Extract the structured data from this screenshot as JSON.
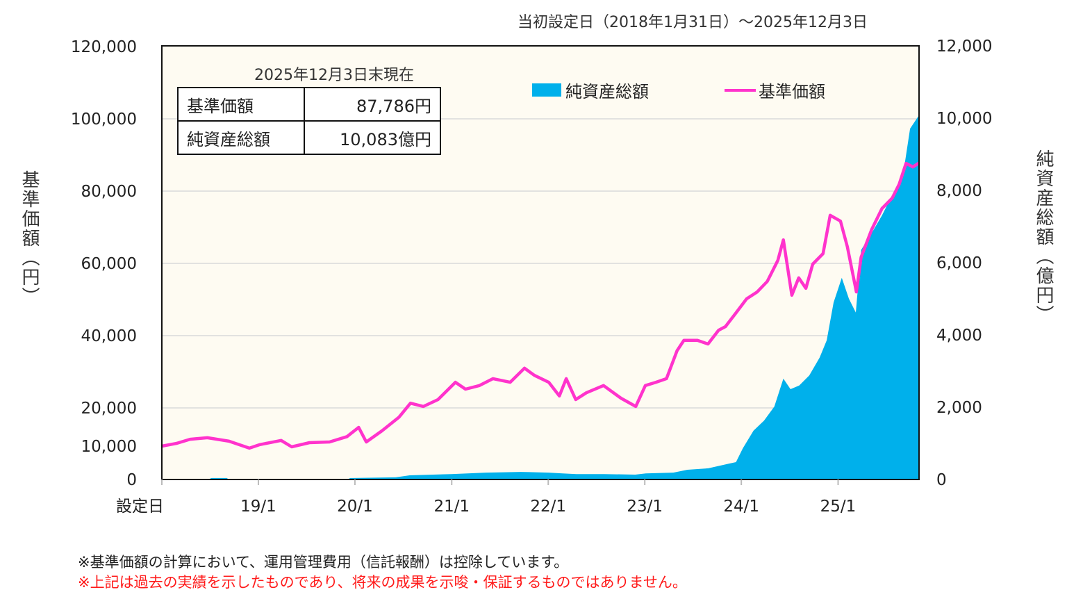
{
  "period": "当初設定日（2018年1月31日）～2025年12月3日",
  "info_box": {
    "as_of": "2025年12月3日末現在",
    "rows": [
      {
        "label": "基準価額",
        "value": "87,786円"
      },
      {
        "label": "純資産総額",
        "value": "10,083億円"
      }
    ]
  },
  "notes": [
    "※基準価額の計算において、運用管理費用（信託報酬）は控除しています。",
    "※上記は過去の実績を示したものであり、将来の成果を示唆・保証するものではありません。"
  ],
  "colors": {
    "nav": "#ff33cc",
    "net_assets": "#00b0eb",
    "plot_bg": "#fefbf2",
    "grid": "#d9d9d9",
    "note_warning": "#ff1a1a"
  },
  "chart_data": {
    "type": "line+area",
    "legend_position": "top-right",
    "grid": true,
    "xlabel": "",
    "x_range": [
      "2018-01-31",
      "2025-12-03"
    ],
    "x_ticks": [
      {
        "label": "設定日",
        "date": "2018-01-31"
      },
      {
        "label": "19/1",
        "date": "2019-01-31"
      },
      {
        "label": "20/1",
        "date": "2020-01-31"
      },
      {
        "label": "21/1",
        "date": "2021-01-31"
      },
      {
        "label": "22/1",
        "date": "2022-01-31"
      },
      {
        "label": "23/1",
        "date": "2023-01-31"
      },
      {
        "label": "24/1",
        "date": "2024-01-31"
      },
      {
        "label": "25/1",
        "date": "2025-01-31"
      }
    ],
    "y_left": {
      "label": "基準価額（円）",
      "ylim": [
        0,
        120000
      ],
      "ticks": [
        {
          "v": 0,
          "label": "0"
        },
        {
          "v": 10000,
          "label": "10,000"
        },
        {
          "v": 20000,
          "label": "20,000"
        },
        {
          "v": 40000,
          "label": "40,000"
        },
        {
          "v": 60000,
          "label": "60,000"
        },
        {
          "v": 80000,
          "label": "80,000"
        },
        {
          "v": 100000,
          "label": "100,000"
        },
        {
          "v": 120000,
          "label": "120,000"
        }
      ]
    },
    "y_right": {
      "label": "純資産総額（億円）",
      "ylim": [
        0,
        12000
      ],
      "ticks": [
        {
          "v": 0,
          "label": "0"
        },
        {
          "v": 2000,
          "label": "2,000"
        },
        {
          "v": 4000,
          "label": "4,000"
        },
        {
          "v": 6000,
          "label": "6,000"
        },
        {
          "v": 8000,
          "label": "8,000"
        },
        {
          "v": 10000,
          "label": "10,000"
        },
        {
          "v": 12000,
          "label": "12,000"
        }
      ]
    },
    "series": [
      {
        "name": "純資産総額",
        "type": "area",
        "axis": "right",
        "unit": "億円",
        "points": [
          [
            "2018-01-31",
            0
          ],
          [
            "2018-07-24",
            0
          ],
          [
            "2018-08-07",
            40
          ],
          [
            "2018-10-03",
            40
          ],
          [
            "2018-10-12",
            0
          ],
          [
            "2020-01-01",
            0
          ],
          [
            "2020-01-14",
            40
          ],
          [
            "2020-07-03",
            60
          ],
          [
            "2020-08-25",
            115
          ],
          [
            "2021-01-30",
            150
          ],
          [
            "2021-06-10",
            190
          ],
          [
            "2021-10-19",
            210
          ],
          [
            "2022-02-01",
            190
          ],
          [
            "2022-03-26",
            170
          ],
          [
            "2022-05-17",
            150
          ],
          [
            "2022-08-30",
            150
          ],
          [
            "2022-12-26",
            135
          ],
          [
            "2023-02-04",
            170
          ],
          [
            "2023-05-19",
            190
          ],
          [
            "2023-07-11",
            270
          ],
          [
            "2023-09-28",
            310
          ],
          [
            "2023-12-16",
            440
          ],
          [
            "2024-01-11",
            480
          ],
          [
            "2024-02-06",
            865
          ],
          [
            "2024-03-17",
            1350
          ],
          [
            "2024-04-26",
            1630
          ],
          [
            "2024-06-04",
            2020
          ],
          [
            "2024-07-08",
            2790
          ],
          [
            "2024-08-04",
            2500
          ],
          [
            "2024-09-06",
            2600
          ],
          [
            "2024-10-14",
            2880
          ],
          [
            "2024-11-22",
            3370
          ],
          [
            "2024-12-19",
            3850
          ],
          [
            "2025-01-14",
            4900
          ],
          [
            "2025-02-14",
            5580
          ],
          [
            "2025-03-13",
            5000
          ],
          [
            "2025-04-08",
            4620
          ],
          [
            "2025-04-28",
            6350
          ],
          [
            "2025-06-08",
            6830
          ],
          [
            "2025-07-16",
            7310
          ],
          [
            "2025-09-07",
            8080
          ],
          [
            "2025-10-04",
            8460
          ],
          [
            "2025-10-30",
            9710
          ],
          [
            "2025-12-03",
            10083
          ]
        ]
      },
      {
        "name": "基準価額",
        "type": "line",
        "axis": "left",
        "unit": "円",
        "points": [
          [
            "2018-01-31",
            10000
          ],
          [
            "2018-03-27",
            10700
          ],
          [
            "2018-05-18",
            11800
          ],
          [
            "2018-07-22",
            12200
          ],
          [
            "2018-10-12",
            11300
          ],
          [
            "2018-12-28",
            9400
          ],
          [
            "2019-02-06",
            10400
          ],
          [
            "2019-04-27",
            11500
          ],
          [
            "2019-06-06",
            9800
          ],
          [
            "2019-08-12",
            10900
          ],
          [
            "2019-10-27",
            11100
          ],
          [
            "2020-01-01",
            12500
          ],
          [
            "2020-02-14",
            14900
          ],
          [
            "2020-03-14",
            11100
          ],
          [
            "2020-05-12",
            14000
          ],
          [
            "2020-07-16",
            17600
          ],
          [
            "2020-08-28",
            21300
          ],
          [
            "2020-10-16",
            20400
          ],
          [
            "2020-12-10",
            22300
          ],
          [
            "2021-02-14",
            27100
          ],
          [
            "2021-03-24",
            25200
          ],
          [
            "2021-05-16",
            26200
          ],
          [
            "2021-07-06",
            28100
          ],
          [
            "2021-09-09",
            27100
          ],
          [
            "2021-11-02",
            31000
          ],
          [
            "2021-12-10",
            29000
          ],
          [
            "2022-02-02",
            27100
          ],
          [
            "2022-03-14",
            23300
          ],
          [
            "2022-04-09",
            28100
          ],
          [
            "2022-05-15",
            22300
          ],
          [
            "2022-06-24",
            24200
          ],
          [
            "2022-08-28",
            26200
          ],
          [
            "2022-11-02",
            22700
          ],
          [
            "2022-12-28",
            20400
          ],
          [
            "2023-02-02",
            26200
          ],
          [
            "2023-03-14",
            27100
          ],
          [
            "2023-04-23",
            28100
          ],
          [
            "2023-06-02",
            35800
          ],
          [
            "2023-06-28",
            38700
          ],
          [
            "2023-08-18",
            38700
          ],
          [
            "2023-09-27",
            37700
          ],
          [
            "2023-11-06",
            41500
          ],
          [
            "2023-12-02",
            42500
          ],
          [
            "2024-01-11",
            46300
          ],
          [
            "2024-02-20",
            50200
          ],
          [
            "2024-03-31",
            52100
          ],
          [
            "2024-05-08",
            55000
          ],
          [
            "2024-06-17",
            60800
          ],
          [
            "2024-07-08",
            66500
          ],
          [
            "2024-08-09",
            51200
          ],
          [
            "2024-09-04",
            56000
          ],
          [
            "2024-10-01",
            53100
          ],
          [
            "2024-10-27",
            59800
          ],
          [
            "2024-12-05",
            62700
          ],
          [
            "2025-01-01",
            73300
          ],
          [
            "2025-02-09",
            71700
          ],
          [
            "2025-03-07",
            64600
          ],
          [
            "2025-03-20",
            59800
          ],
          [
            "2025-04-10",
            52100
          ],
          [
            "2025-04-28",
            61700
          ],
          [
            "2025-06-07",
            69400
          ],
          [
            "2025-07-16",
            75200
          ],
          [
            "2025-08-24",
            78100
          ],
          [
            "2025-09-19",
            81900
          ],
          [
            "2025-10-15",
            87700
          ],
          [
            "2025-11-10",
            86700
          ],
          [
            "2025-12-03",
            87786
          ]
        ]
      }
    ]
  }
}
